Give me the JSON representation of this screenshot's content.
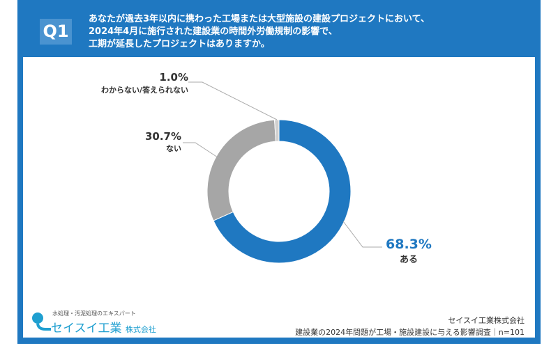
{
  "header": {
    "badge": "Q1",
    "question_lines": [
      "あなたが過去3年以内に携わった工場または大型施設の建設プロジェクトにおいて、",
      "2024年4月に施行された建設業の時間外労働規制の影響で、",
      "工期が延長したプロジェクトはありますか。"
    ]
  },
  "chart_data": {
    "type": "pie",
    "style": "donut",
    "categories": [
      "ある",
      "ない",
      "わからない/答えられない"
    ],
    "values": [
      68.3,
      30.7,
      1.0
    ],
    "labels": [
      "68.3%",
      "30.7%",
      "1.0%"
    ],
    "colors": [
      "#1f78c1",
      "#a6a6a6",
      "#d0d0d0"
    ],
    "start": "top",
    "direction": "clockwise"
  },
  "footer": {
    "company": "セイスイ工業株式会社",
    "survey": "建設業の2024年問題が工場・施設建設に与える影響調査｜n=101"
  },
  "logo": {
    "tagline": "水処理・汚泥処理のエキスパート",
    "name": "セイスイ工業",
    "suffix": "株式会社"
  }
}
